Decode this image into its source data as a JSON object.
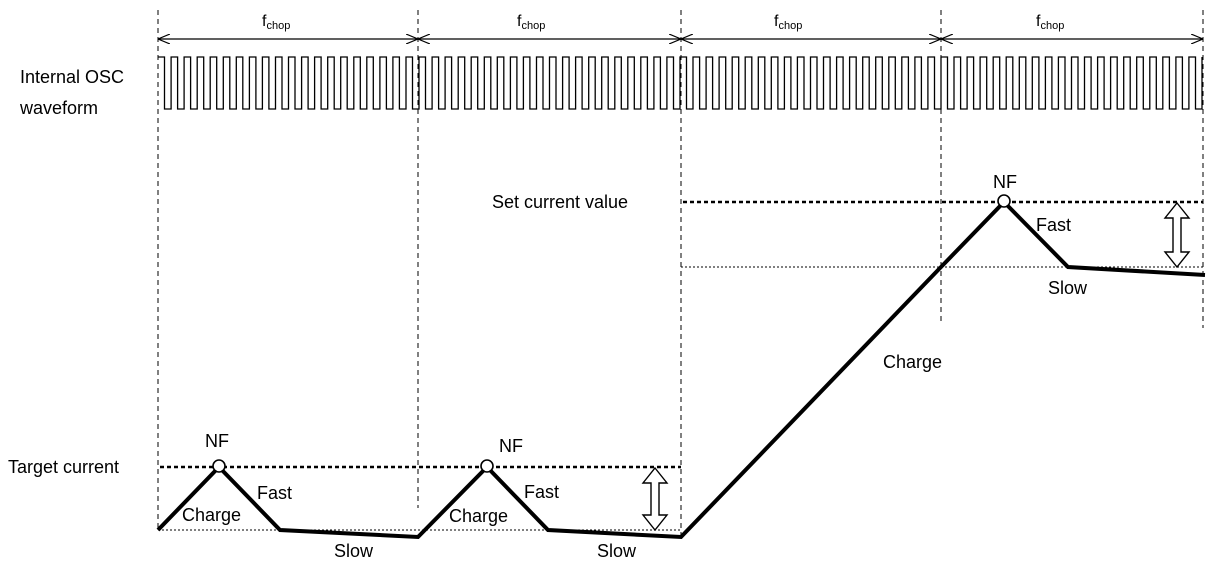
{
  "labels": {
    "f_symbol": "f",
    "f_subscript": "chop",
    "osc_line1": "Internal OSC",
    "osc_line2": "waveform",
    "set_current": "Set current value",
    "target_current": "Target current",
    "nf": "NF",
    "fast": "Fast",
    "slow": "Slow",
    "charge": "Charge"
  },
  "colors": {
    "line": "#000000",
    "background": "#ffffff"
  }
}
